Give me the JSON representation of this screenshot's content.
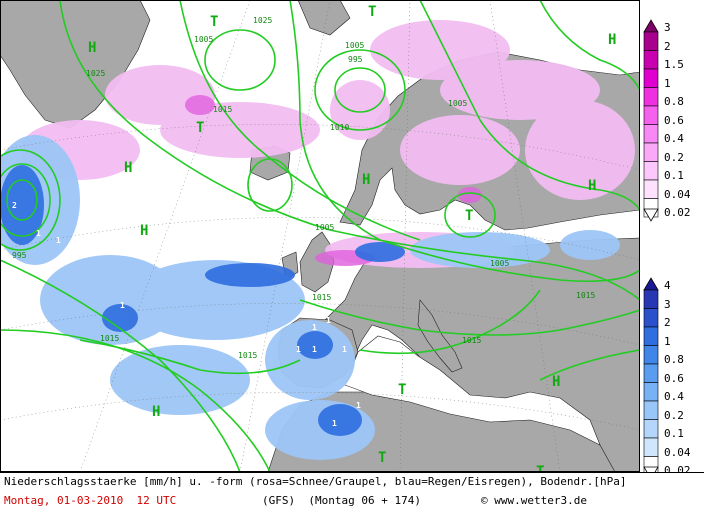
{
  "map": {
    "colors": {
      "ocean": "#ffffff",
      "land": "#a8a8a8",
      "isobar": "#22cc22",
      "snow": "#f0b0f0",
      "rain": "#3f86e8"
    },
    "isobar_labels": [
      "1025",
      "1005",
      "1005",
      "995",
      "1015",
      "1010",
      "1005",
      "995",
      "1015",
      "1005",
      "1015",
      "1015",
      "1005",
      "1015",
      "1015",
      "1025"
    ],
    "high_markers": [
      "H",
      "H",
      "H",
      "H",
      "H",
      "H",
      "H",
      "H"
    ],
    "trough_markers": [
      "T",
      "T",
      "T",
      "T",
      "T",
      "T",
      "T"
    ],
    "precip_labels": [
      "2",
      "1",
      "1",
      "1",
      "1",
      "1",
      "1",
      "1",
      "1",
      "1",
      "1",
      "1"
    ]
  },
  "legend_snow": {
    "name": "snow-scale",
    "values": [
      "3",
      "2",
      "1.5",
      "1",
      "0.8",
      "0.6",
      "0.4",
      "0.2",
      "0.1",
      "0.04",
      "0.02"
    ],
    "colors": [
      "#80006a",
      "#a8008c",
      "#c800b0",
      "#e000d0",
      "#ee30e0",
      "#f560ee",
      "#f888f5",
      "#faa8f8",
      "#fcc8fb",
      "#fee2fd",
      "#ffffff"
    ]
  },
  "legend_rain": {
    "name": "rain-scale",
    "values": [
      "4",
      "3",
      "2",
      "1",
      "0.8",
      "0.6",
      "0.4",
      "0.2",
      "0.1",
      "0.04",
      "0.02"
    ],
    "colors": [
      "#1a1a96",
      "#2838b4",
      "#2a50cc",
      "#2e6ee0",
      "#3f86e8",
      "#5a9cf0",
      "#78b2f4",
      "#98c6f8",
      "#b4d6fa",
      "#d0e6fc",
      "#ffffff"
    ]
  },
  "footer": {
    "line1": "Niederschlagsstaerke [mm/h] u. -form (rosa=Schnee/Graupel, blau=Regen/Eisregen), Bodendr.[hPa]",
    "date": "Montag, 01-03-2010  12 UTC",
    "model": "(GFS)  (Montag 06 + 174)",
    "copyright": "© www.wetter3.de"
  }
}
